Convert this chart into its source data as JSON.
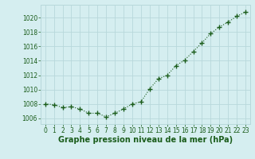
{
  "x": [
    0,
    1,
    2,
    3,
    4,
    5,
    6,
    7,
    8,
    9,
    10,
    11,
    12,
    13,
    14,
    15,
    16,
    17,
    18,
    19,
    20,
    21,
    22,
    23
  ],
  "y": [
    1008.0,
    1007.9,
    1007.5,
    1007.6,
    1007.3,
    1006.7,
    1006.7,
    1006.2,
    1006.7,
    1007.3,
    1008.0,
    1008.3,
    1010.1,
    1011.5,
    1012.0,
    1013.3,
    1014.1,
    1015.3,
    1016.5,
    1017.8,
    1018.7,
    1019.4,
    1020.2,
    1020.8
  ],
  "line_color": "#1a5c1a",
  "marker": "+",
  "marker_size": 4,
  "bg_color": "#d5eef0",
  "grid_color": "#b8d8db",
  "xlabel": "Graphe pression niveau de la mer (hPa)",
  "xlabel_fontsize": 7,
  "xlabel_color": "#1a5c1a",
  "ylabel_ticks": [
    1006,
    1008,
    1010,
    1012,
    1014,
    1016,
    1018,
    1020
  ],
  "ylim": [
    1005.2,
    1021.8
  ],
  "xlim": [
    -0.5,
    23.5
  ],
  "tick_fontsize": 5.5,
  "tick_color": "#1a5c1a"
}
